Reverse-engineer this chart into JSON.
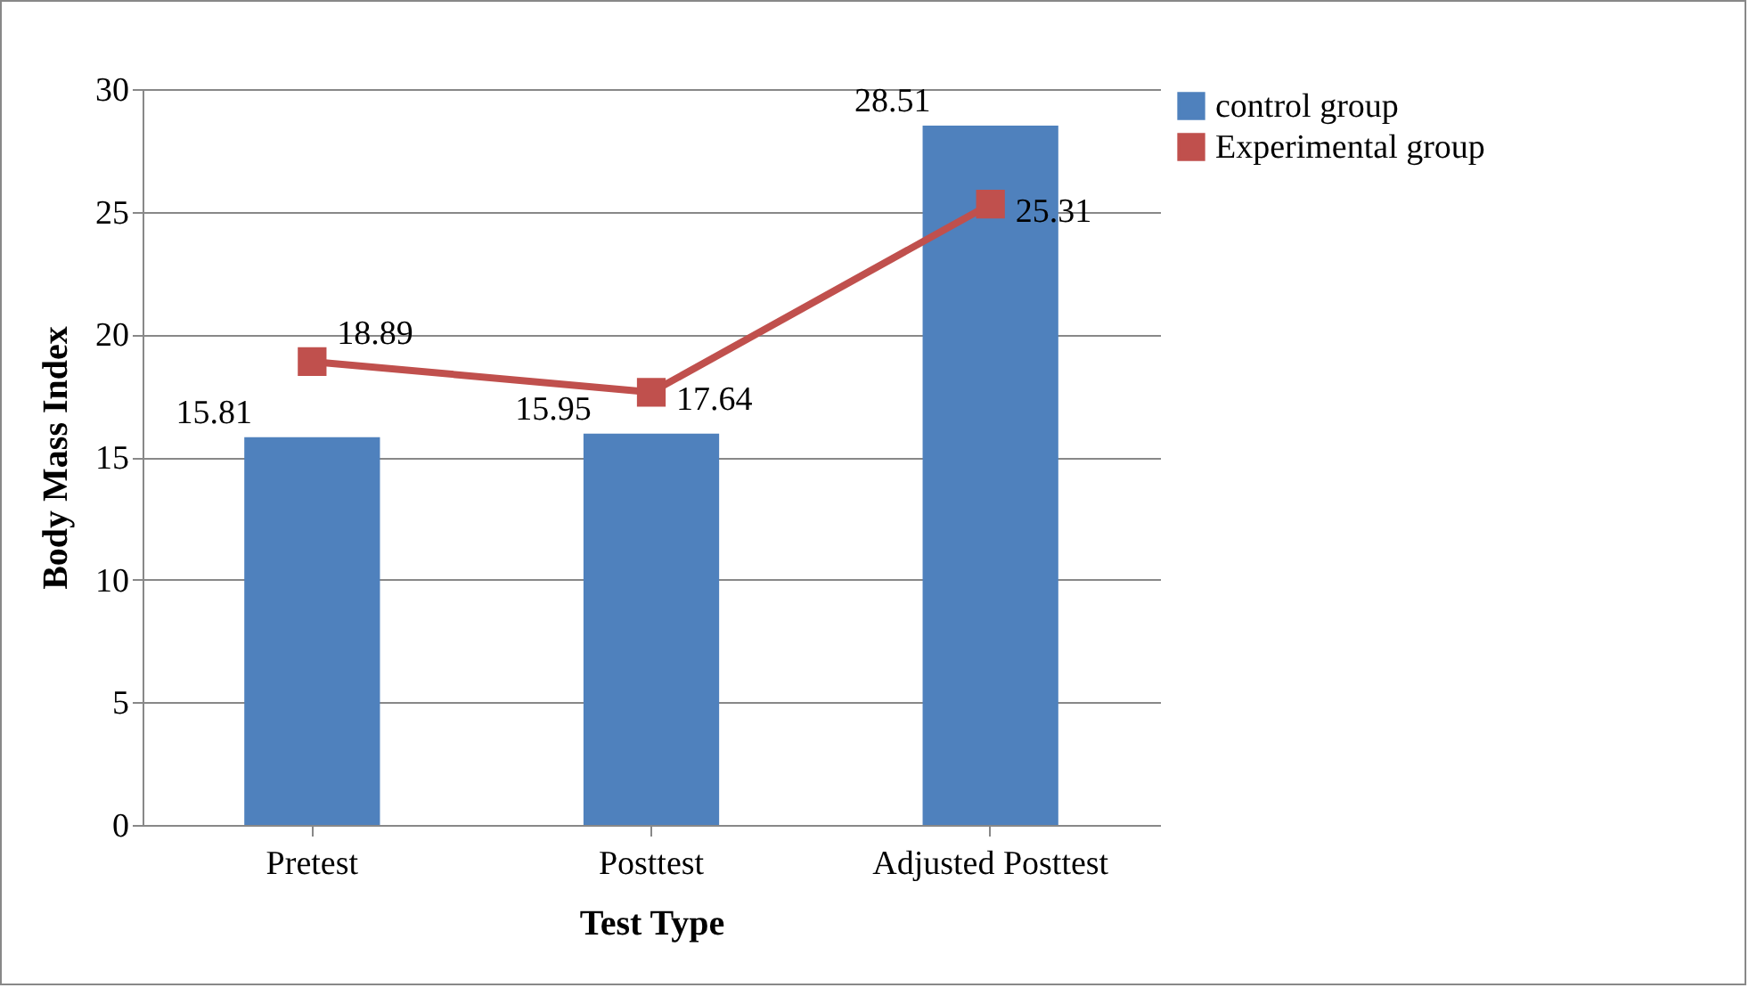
{
  "chart_data": {
    "type": "bar",
    "xlabel": "Test Type",
    "ylabel": "Body Mass Index",
    "categories": [
      "Pretest",
      "Posttest",
      "Adjusted Posttest"
    ],
    "series": [
      {
        "name": "control group",
        "color": "#4f81bd",
        "values": [
          15.81,
          15.95,
          28.51
        ]
      },
      {
        "name": "Experimental group",
        "type": "line",
        "color": "#c0504d",
        "values": [
          18.89,
          17.64,
          25.31
        ]
      }
    ],
    "ylim": [
      0,
      30
    ],
    "yticks": [
      0,
      5,
      10,
      15,
      20,
      25,
      30
    ],
    "grid": "y",
    "legend": "right",
    "marker": "square",
    "data_labels": true
  }
}
